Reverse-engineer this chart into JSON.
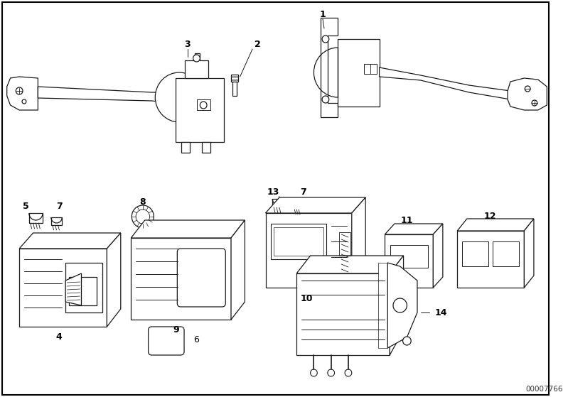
{
  "bg_color": "#ffffff",
  "border_color": "#000000",
  "line_color": "#1a1a1a",
  "text_color": "#000000",
  "fig_width": 7.99,
  "fig_height": 5.59,
  "dpi": 100,
  "part_number": "00007766",
  "title_color": "#000000"
}
